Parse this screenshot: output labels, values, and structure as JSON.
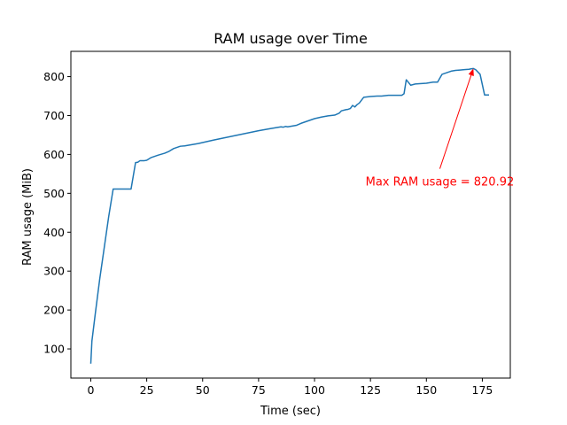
{
  "chart_data": {
    "type": "line",
    "title": "RAM usage over Time",
    "xlabel": "Time (sec)",
    "ylabel": "RAM usage (MiB)",
    "xlim": [
      -8.9,
      187.5
    ],
    "ylim": [
      25,
      865
    ],
    "xticks": [
      0,
      25,
      50,
      75,
      100,
      125,
      150,
      175
    ],
    "yticks": [
      100,
      200,
      300,
      400,
      500,
      600,
      700,
      800
    ],
    "grid": false,
    "series": [
      {
        "color": "#1f77b4",
        "x": [
          0,
          0.5,
          2,
          4,
          6,
          8,
          10,
          12,
          14,
          16,
          18,
          20,
          21,
          22,
          24,
          25,
          27,
          30,
          33,
          35,
          37,
          39,
          40,
          42,
          44,
          48,
          55,
          60,
          65,
          70,
          75,
          80,
          85,
          86,
          87,
          88,
          90,
          92,
          94,
          96,
          98,
          100,
          103,
          106,
          109,
          111,
          112,
          114,
          115,
          116,
          117,
          118,
          119,
          120,
          122,
          125,
          128,
          130,
          133,
          136,
          139,
          140,
          141,
          143,
          145,
          147,
          150,
          153,
          155,
          157,
          159,
          161,
          163,
          165,
          167,
          169,
          170,
          171,
          172,
          174,
          176,
          178
        ],
        "y": [
          62,
          120,
          190,
          280,
          360,
          440,
          511,
          511,
          511,
          511,
          511,
          579,
          580,
          584,
          584,
          585,
          592,
          598,
          603,
          608,
          615,
          619,
          621,
          622,
          624,
          628,
          637,
          643,
          649,
          655,
          661,
          666,
          671,
          670,
          672,
          671,
          673,
          675,
          680,
          684,
          688,
          692,
          696,
          699,
          701,
          706,
          712,
          715,
          716,
          718,
          726,
          722,
          728,
          732,
          747,
          749,
          750,
          750,
          752,
          752,
          752,
          756,
          792,
          778,
          781,
          782,
          783,
          786,
          786,
          806,
          810,
          814,
          816,
          817,
          818,
          819,
          820,
          820.92,
          818,
          806,
          753,
          753
        ]
      }
    ],
    "annotation": {
      "text": "Max RAM usage = 820.92",
      "color": "#ff0000",
      "point": [
        171,
        820.92
      ],
      "text_at": [
        156,
        520
      ]
    }
  }
}
